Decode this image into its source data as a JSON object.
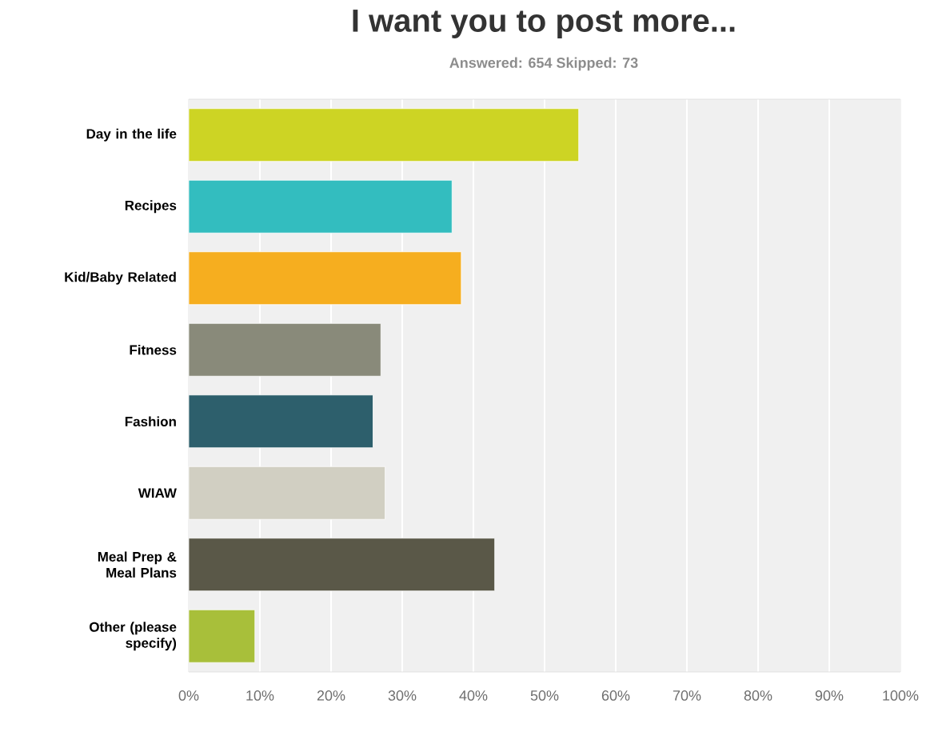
{
  "chart_data": {
    "type": "bar",
    "orientation": "horizontal",
    "title": "I want you to post more...",
    "subtitle": "Answered: 654    Skipped: 73",
    "categories": [
      "Day in the life",
      "Recipes",
      "Kid/Baby Related",
      "Fitness",
      "Fashion",
      "WIAW",
      "Meal Prep & Meal Plans",
      "Other (please specify)"
    ],
    "values": [
      54.8,
      37.0,
      38.3,
      27.0,
      25.9,
      27.6,
      43.0,
      9.3
    ],
    "colors": [
      "#cdd424",
      "#33bdbf",
      "#f6ae1f",
      "#898a7a",
      "#2d5f6c",
      "#d1cfc2",
      "#5a5848",
      "#a8bf3a"
    ],
    "xlim": [
      0,
      100
    ],
    "xticks": [
      {
        "value": 0,
        "label": "0%"
      },
      {
        "value": 10,
        "label": "10%"
      },
      {
        "value": 20,
        "label": "20%"
      },
      {
        "value": 30,
        "label": "30%"
      },
      {
        "value": 40,
        "label": "40%"
      },
      {
        "value": 50,
        "label": "50%"
      },
      {
        "value": 60,
        "label": "60%"
      },
      {
        "value": 70,
        "label": "70%"
      },
      {
        "value": 80,
        "label": "80%"
      },
      {
        "value": 90,
        "label": "90%"
      },
      {
        "value": 100,
        "label": "100%"
      }
    ],
    "grid": "x"
  }
}
